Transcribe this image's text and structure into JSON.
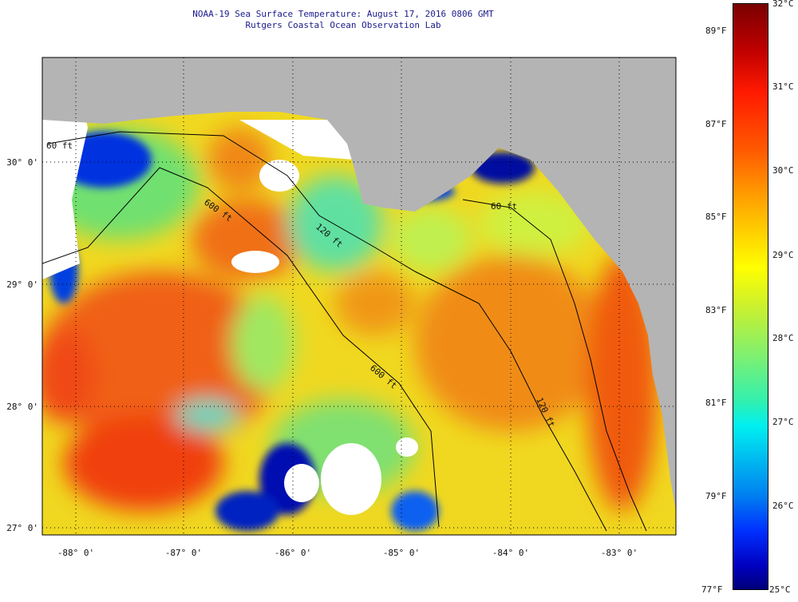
{
  "title": {
    "line1": "NOAA-19 Sea Surface Temperature:  August 17, 2016 0806 GMT",
    "line2": "Rutgers Coastal Ocean Observation Lab"
  },
  "map": {
    "lat_labels": [
      "30° 0'",
      "29° 0'",
      "28° 0'",
      "27° 0'"
    ],
    "lon_labels": [
      "-88° 0'",
      "-87° 0'",
      "-86° 0'",
      "-85° 0'",
      "-84° 0'",
      "-83° 0'"
    ],
    "contour_labels": [
      "60 ft",
      "600 ft",
      "120 ft",
      "600 ft",
      "120 ft",
      "60 ft"
    ],
    "colors": {
      "land": "#b4b4b4",
      "nodata": "#ffffff"
    }
  },
  "colorbar": {
    "fahrenheit_labels": [
      "89°F",
      "87°F",
      "85°F",
      "83°F",
      "81°F",
      "79°F",
      "77°F"
    ],
    "celsius_labels": [
      "32°C",
      "31°C",
      "30°C",
      "29°C",
      "28°C",
      "27°C",
      "26°C",
      "25°C"
    ],
    "range_celsius": [
      25,
      32
    ]
  }
}
